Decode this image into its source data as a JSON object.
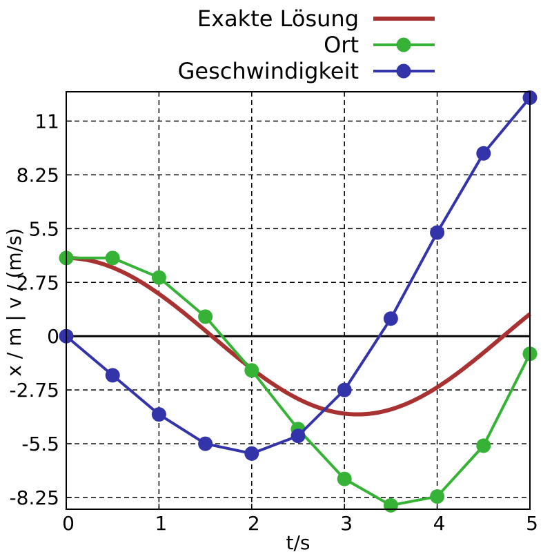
{
  "chart_data": {
    "type": "line",
    "xlabel": "t/s",
    "ylabel": "x / m | v / (m/s)",
    "xlim": [
      0,
      5
    ],
    "ylim": [
      -8.85,
      12.5
    ],
    "x_ticks": [
      "0",
      "1",
      "2",
      "3",
      "4",
      "5"
    ],
    "y_ticks": [
      "-8.25",
      "-5.5",
      "-2.75",
      "0",
      "2.75",
      "5.5",
      "8.25",
      "11"
    ],
    "grid": true,
    "legend_position": "top-right",
    "exact_solution": {
      "name": "Exakte Lösung",
      "color": "#a83232",
      "amplitude": 4,
      "omega": 1
    },
    "series": [
      {
        "name": "Ort",
        "color": "#36b236",
        "x": [
          0,
          0.5,
          1,
          1.5,
          2,
          2.5,
          3,
          3.5,
          4,
          4.5,
          5
        ],
        "values": [
          4,
          4,
          3,
          1,
          -1.75,
          -4.75,
          -7.3,
          -8.65,
          -8.2,
          -5.6,
          -0.9
        ]
      },
      {
        "name": "Geschwindigkeit",
        "color": "#3333aa",
        "x": [
          0,
          0.5,
          1,
          1.5,
          2,
          2.5,
          3,
          3.5,
          4,
          4.5,
          5
        ],
        "values": [
          0,
          -2,
          -4,
          -5.5,
          -6,
          -5.1,
          -2.75,
          0.9,
          5.3,
          9.35,
          12.2
        ]
      }
    ]
  }
}
